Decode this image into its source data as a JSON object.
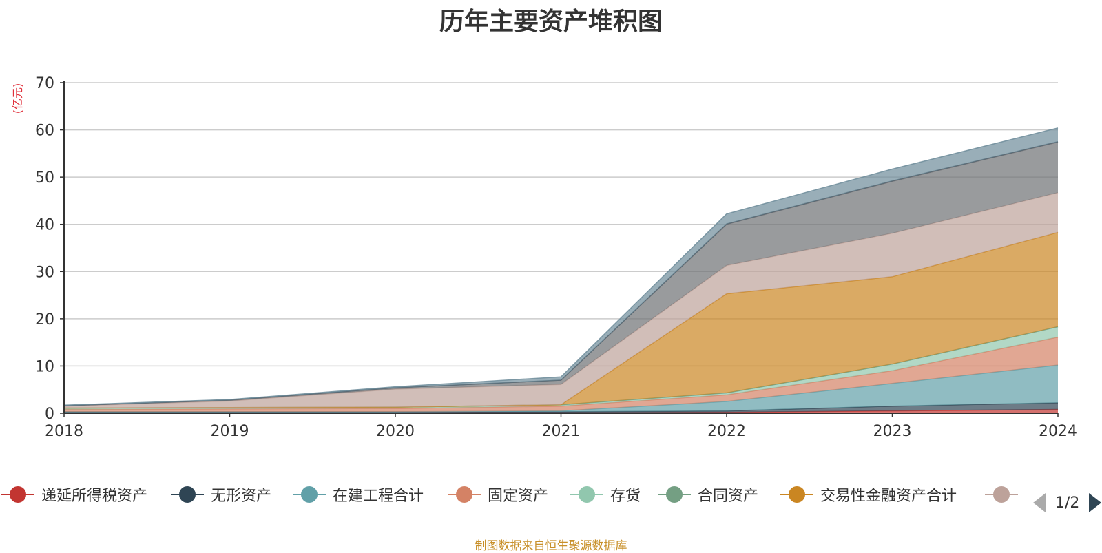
{
  "title": "历年主要资产堆积图",
  "unit_label": "(亿元)",
  "source": "制图数据来自恒生聚源数据库",
  "legend_page": "1/2",
  "legend_visible": [
    {
      "name": "递延所得税资产",
      "color": "#c23531"
    },
    {
      "name": "无形资产",
      "color": "#2f4554"
    },
    {
      "name": "在建工程合计",
      "color": "#61a0a8"
    },
    {
      "name": "固定资产",
      "color": "#d48265"
    },
    {
      "name": "存货",
      "color": "#91c7ae"
    },
    {
      "name": "合同资产",
      "color": "#749f83"
    },
    {
      "name": "交易性金融资产合计",
      "color": "#ca8622"
    },
    {
      "name": "",
      "color": "#bda29a"
    }
  ],
  "chart_data": {
    "type": "area",
    "stacked": true,
    "title": "历年主要资产堆积图",
    "ylabel": "(亿元)",
    "ylim": [
      0,
      70
    ],
    "yticks": [
      0,
      10,
      20,
      30,
      40,
      50,
      60,
      70
    ],
    "x": [
      "2018",
      "2019",
      "2020",
      "2021",
      "2022",
      "2023",
      "2024"
    ],
    "grid": true,
    "legend_position": "bottom",
    "series": [
      {
        "name": "递延所得税资产",
        "color": "#c23531",
        "values": [
          0.1,
          0.1,
          0.1,
          0.1,
          0.2,
          0.5,
          0.8
        ]
      },
      {
        "name": "无形资产",
        "color": "#2f4554",
        "values": [
          0.2,
          0.2,
          0.2,
          0.2,
          0.3,
          1.0,
          1.4
        ]
      },
      {
        "name": "在建工程合计",
        "color": "#61a0a8",
        "values": [
          0.0,
          0.0,
          0.0,
          0.2,
          2.0,
          4.8,
          8.0
        ]
      },
      {
        "name": "固定资产",
        "color": "#d48265",
        "values": [
          0.5,
          0.6,
          0.7,
          1.0,
          1.4,
          2.7,
          5.9
        ]
      },
      {
        "name": "存货",
        "color": "#91c7ae",
        "values": [
          0.3,
          0.3,
          0.3,
          0.3,
          0.4,
          1.4,
          2.2
        ]
      },
      {
        "name": "合同资产",
        "color": "#749f83",
        "values": [
          0.0,
          0.0,
          0.0,
          0.0,
          0.0,
          0.0,
          0.0
        ]
      },
      {
        "name": "交易性金融资产合计",
        "color": "#ca8622",
        "values": [
          0.0,
          0.0,
          0.0,
          0.0,
          21.0,
          18.5,
          20.0
        ]
      },
      {
        "color": "#bda29a",
        "values": [
          0.4,
          1.4,
          3.8,
          4.3,
          6.0,
          9.2,
          8.4
        ]
      },
      {
        "color": "#6e7074",
        "values": [
          0.1,
          0.2,
          0.3,
          0.9,
          8.7,
          11.0,
          10.7
        ]
      },
      {
        "color": "#546570",
        "values": [
          0.0,
          0.0,
          0.0,
          0.0,
          0.1,
          0.1,
          0.1
        ]
      },
      {
        "color": "#6d8c9a",
        "values": [
          0.1,
          0.1,
          0.2,
          0.7,
          2.1,
          2.5,
          2.9
        ]
      }
    ]
  }
}
